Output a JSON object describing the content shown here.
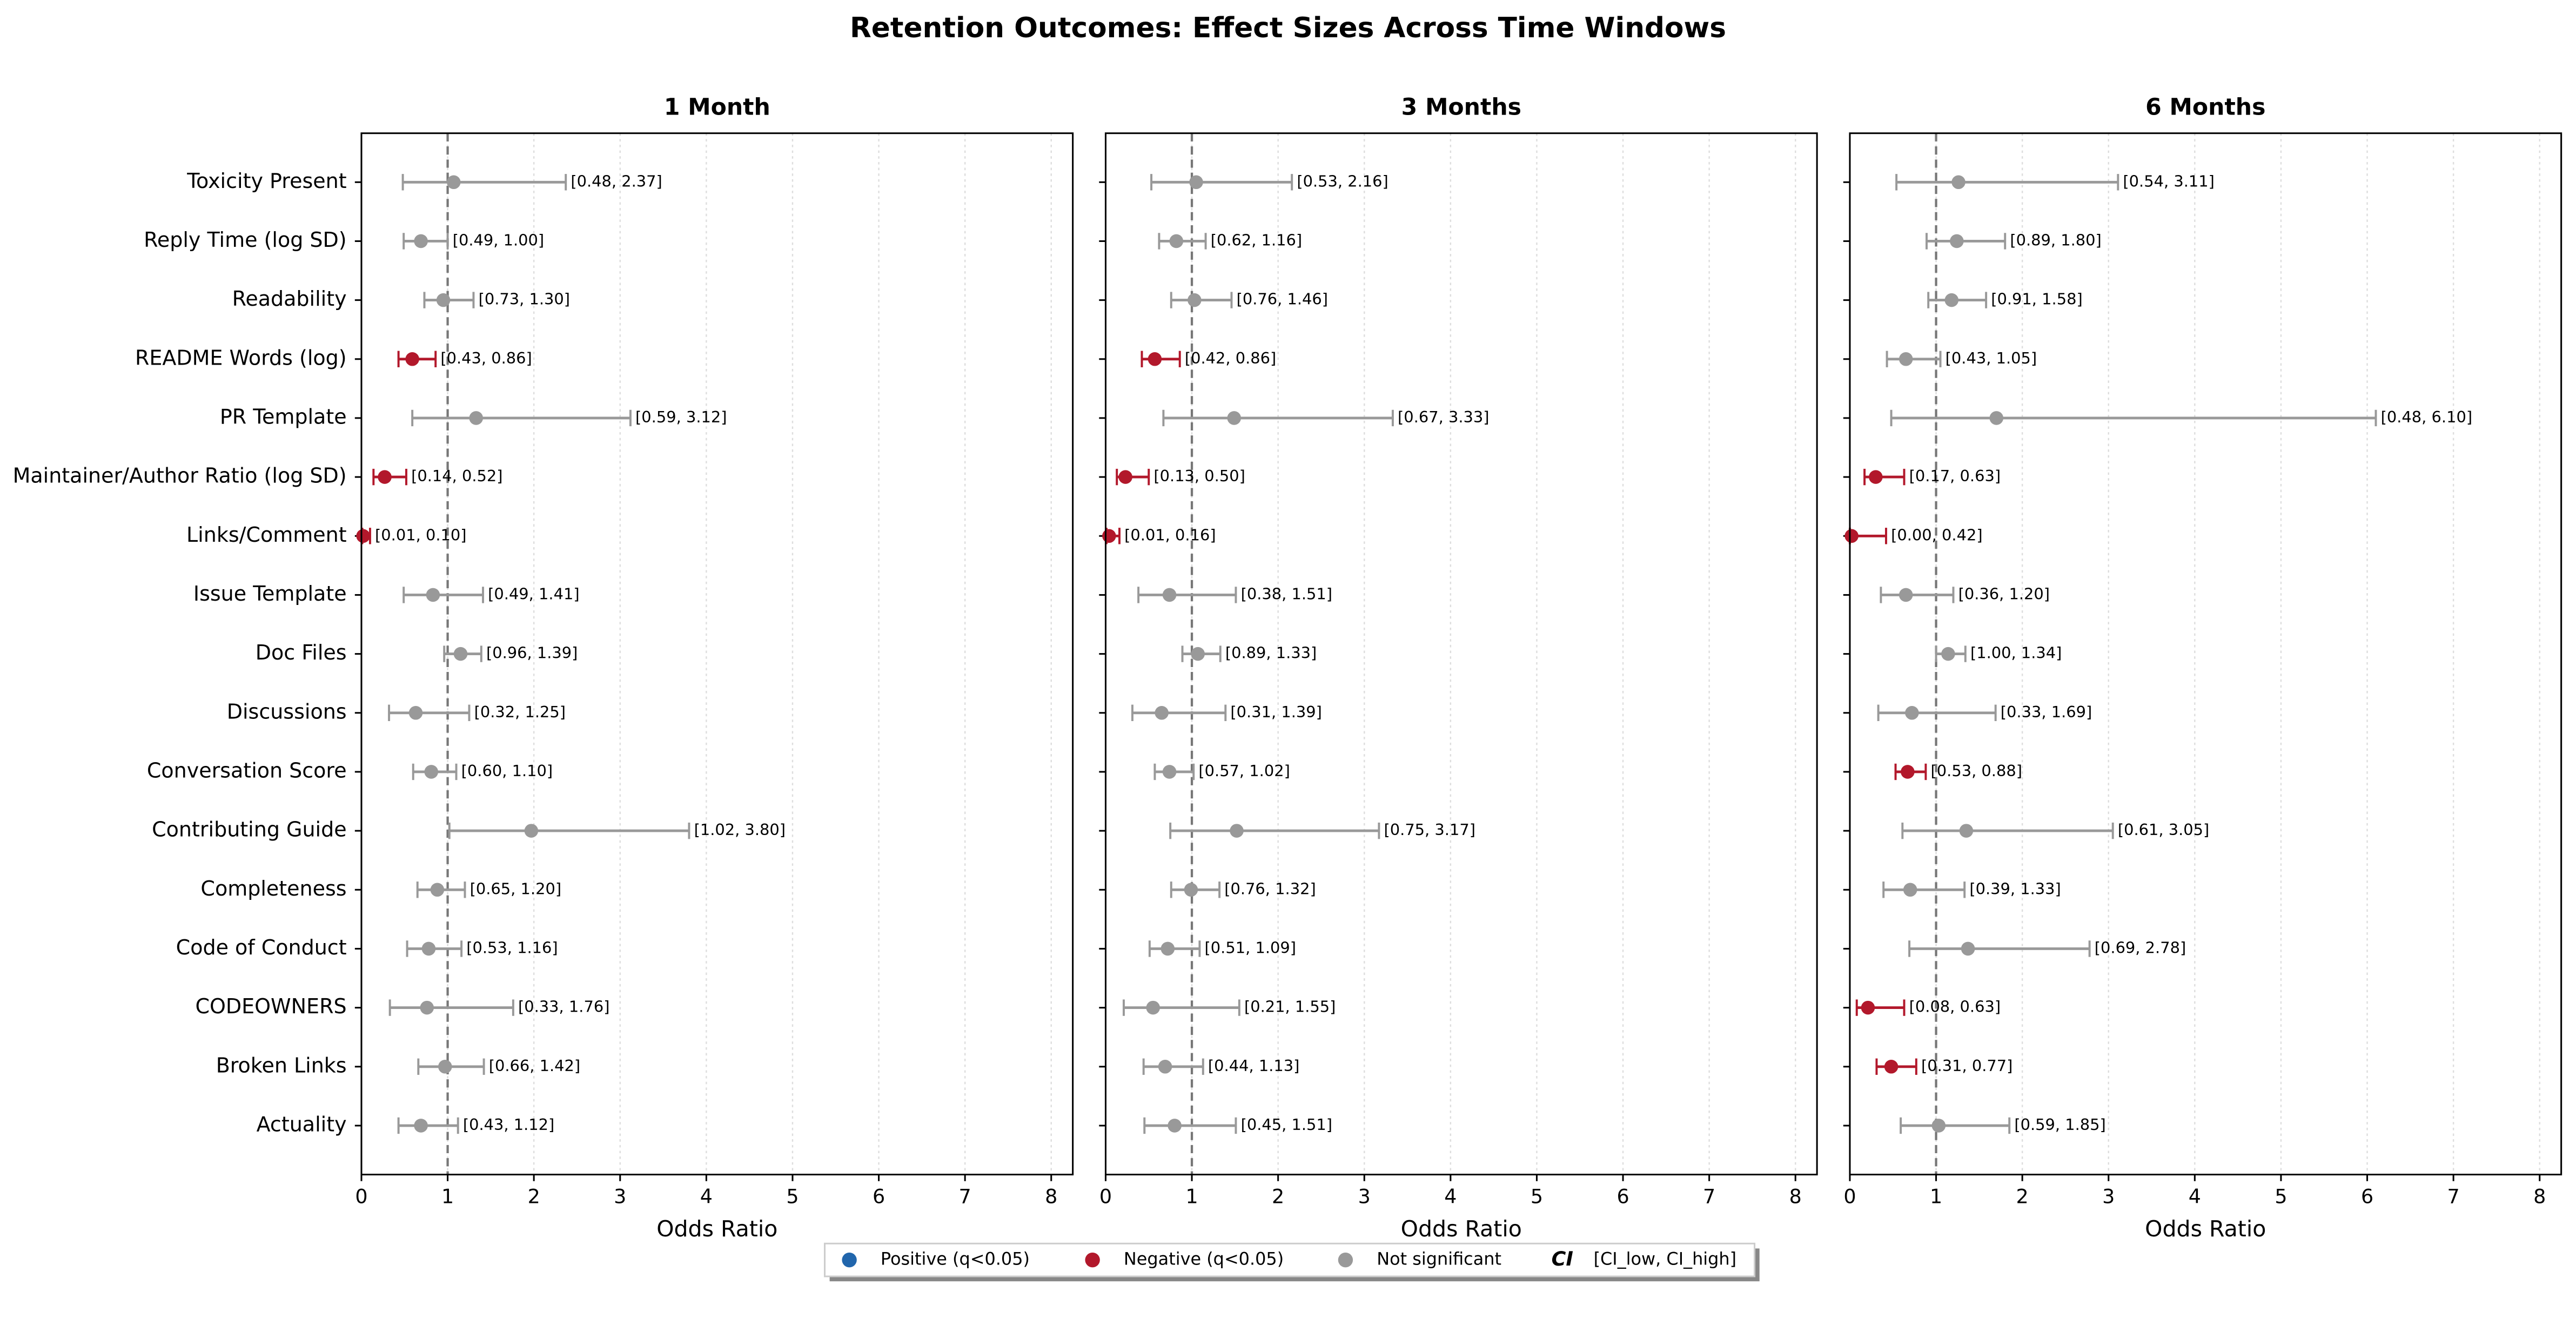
{
  "chart_data": {
    "type": "forest",
    "title": "Retention Outcomes: Effect Sizes Across Time Windows",
    "xlabel": "Odds Ratio",
    "xlim": [
      0,
      8.25
    ],
    "xticks": [
      0,
      1,
      2,
      3,
      4,
      5,
      6,
      7,
      8
    ],
    "ref_line": 1,
    "grid": true,
    "categories": [
      "Toxicity Present",
      "Reply Time (log SD)",
      "Readability",
      "README Words (log)",
      "PR Template",
      "Maintainer/Author Ratio (log SD)",
      "Links/Comment",
      "Issue Template",
      "Doc Files",
      "Discussions",
      "Conversation Score",
      "Contributing Guide",
      "Completeness",
      "Code of Conduct",
      "CODEOWNERS",
      "Broken Links",
      "Actuality"
    ],
    "legend": [
      {
        "name": "Positive (q<0.05)",
        "color": "#2166ac"
      },
      {
        "name": "Negative (q<0.05)",
        "color": "#b2182b"
      },
      {
        "name": "Not significant",
        "color": "#999999"
      },
      {
        "symbol": "CI",
        "name": "[CI_low, CI_high]"
      }
    ],
    "panels": [
      {
        "title": "1 Month",
        "values": [
          1.07,
          0.69,
          0.95,
          0.59,
          1.33,
          0.27,
          0.02,
          0.83,
          1.15,
          0.63,
          0.81,
          1.97,
          0.88,
          0.78,
          0.76,
          0.97,
          0.69
        ],
        "ci_low": [
          0.48,
          0.49,
          0.73,
          0.43,
          0.59,
          0.14,
          0.01,
          0.49,
          0.96,
          0.32,
          0.6,
          1.02,
          0.65,
          0.53,
          0.33,
          0.66,
          0.43
        ],
        "ci_high": [
          2.37,
          1.0,
          1.3,
          0.86,
          3.12,
          0.52,
          0.1,
          1.41,
          1.39,
          1.25,
          1.1,
          3.8,
          1.2,
          1.16,
          1.76,
          1.42,
          1.12
        ],
        "ci_labels": [
          "[0.48, 2.37]",
          "[0.49, 1.00]",
          "[0.73, 1.30]",
          "[0.43, 0.86]",
          "[0.59, 3.12]",
          "[0.14, 0.52]",
          "[0.01, 0.10]",
          "[0.49, 1.41]",
          "[0.96, 1.39]",
          "[0.32, 1.25]",
          "[0.60, 1.10]",
          "[1.02, 3.80]",
          "[0.65, 1.20]",
          "[0.53, 1.16]",
          "[0.33, 1.76]",
          "[0.66, 1.42]",
          "[0.43, 1.12]"
        ],
        "colors": [
          "#999999",
          "#999999",
          "#999999",
          "#b2182b",
          "#999999",
          "#b2182b",
          "#b2182b",
          "#999999",
          "#999999",
          "#999999",
          "#999999",
          "#999999",
          "#999999",
          "#999999",
          "#999999",
          "#999999",
          "#999999"
        ]
      },
      {
        "title": "3 Months",
        "values": [
          1.05,
          0.82,
          1.03,
          0.57,
          1.49,
          0.23,
          0.04,
          0.74,
          1.07,
          0.65,
          0.74,
          1.52,
          0.99,
          0.72,
          0.55,
          0.69,
          0.8
        ],
        "ci_low": [
          0.53,
          0.62,
          0.76,
          0.42,
          0.67,
          0.13,
          0.01,
          0.38,
          0.89,
          0.31,
          0.57,
          0.75,
          0.76,
          0.51,
          0.21,
          0.44,
          0.45
        ],
        "ci_high": [
          2.16,
          1.16,
          1.46,
          0.86,
          3.33,
          0.5,
          0.16,
          1.51,
          1.33,
          1.39,
          1.02,
          3.17,
          1.32,
          1.09,
          1.55,
          1.13,
          1.51
        ],
        "ci_labels": [
          "[0.53, 2.16]",
          "[0.62, 1.16]",
          "[0.76, 1.46]",
          "[0.42, 0.86]",
          "[0.67, 3.33]",
          "[0.13, 0.50]",
          "[0.01, 0.16]",
          "[0.38, 1.51]",
          "[0.89, 1.33]",
          "[0.31, 1.39]",
          "[0.57, 1.02]",
          "[0.75, 3.17]",
          "[0.76, 1.32]",
          "[0.51, 1.09]",
          "[0.21, 1.55]",
          "[0.44, 1.13]",
          "[0.45, 1.51]"
        ],
        "colors": [
          "#999999",
          "#999999",
          "#999999",
          "#b2182b",
          "#999999",
          "#b2182b",
          "#b2182b",
          "#999999",
          "#999999",
          "#999999",
          "#999999",
          "#999999",
          "#999999",
          "#999999",
          "#999999",
          "#999999",
          "#999999"
        ]
      },
      {
        "title": "6 Months",
        "values": [
          1.26,
          1.24,
          1.18,
          0.65,
          1.7,
          0.3,
          0.02,
          0.65,
          1.14,
          0.72,
          0.67,
          1.35,
          0.7,
          1.37,
          0.21,
          0.48,
          1.03
        ],
        "ci_low": [
          0.54,
          0.89,
          0.91,
          0.43,
          0.48,
          0.17,
          0.0,
          0.36,
          1.0,
          0.33,
          0.53,
          0.61,
          0.39,
          0.69,
          0.08,
          0.31,
          0.59
        ],
        "ci_high": [
          3.11,
          1.8,
          1.58,
          1.05,
          6.1,
          0.63,
          0.42,
          1.2,
          1.34,
          1.69,
          0.88,
          3.05,
          1.33,
          2.78,
          0.63,
          0.77,
          1.85
        ],
        "ci_labels": [
          "[0.54, 3.11]",
          "[0.89, 1.80]",
          "[0.91, 1.58]",
          "[0.43, 1.05]",
          "[0.48, 6.10]",
          "[0.17, 0.63]",
          "[0.00, 0.42]",
          "[0.36, 1.20]",
          "[1.00, 1.34]",
          "[0.33, 1.69]",
          "[0.53, 0.88]",
          "[0.61, 3.05]",
          "[0.39, 1.33]",
          "[0.69, 2.78]",
          "[0.08, 0.63]",
          "[0.31, 0.77]",
          "[0.59, 1.85]"
        ],
        "colors": [
          "#999999",
          "#999999",
          "#999999",
          "#999999",
          "#999999",
          "#b2182b",
          "#b2182b",
          "#999999",
          "#999999",
          "#999999",
          "#b2182b",
          "#999999",
          "#999999",
          "#999999",
          "#b2182b",
          "#b2182b",
          "#999999"
        ]
      }
    ]
  }
}
